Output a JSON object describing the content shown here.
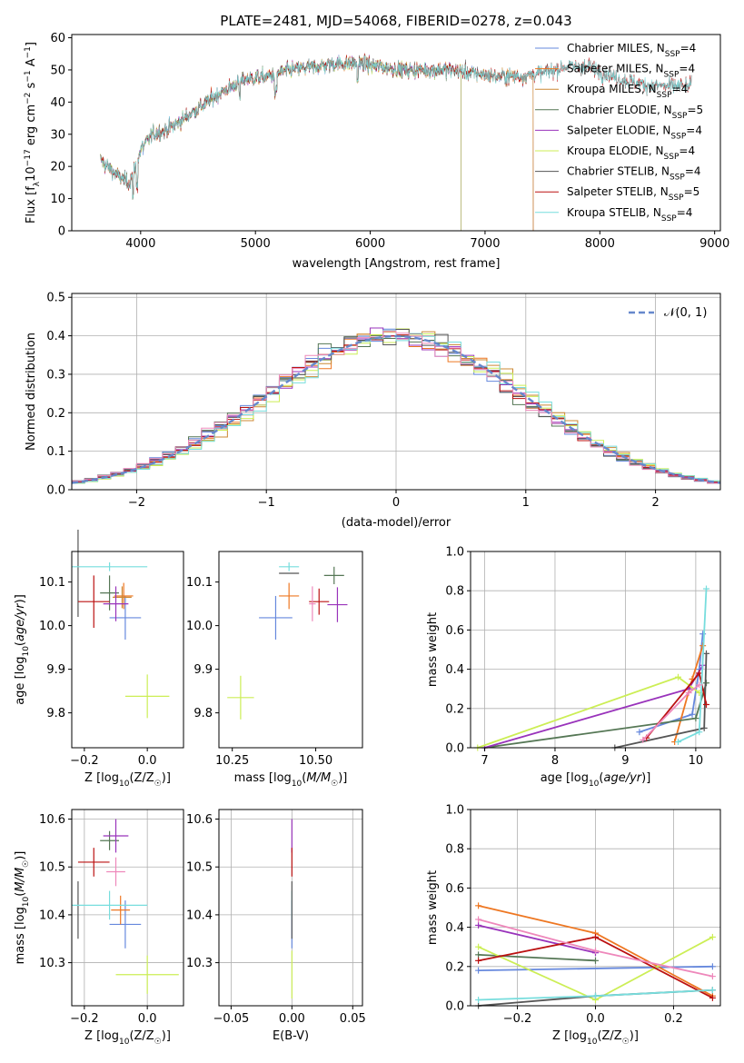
{
  "figure": {
    "title": "PLATE=2481, MJD=54068, FIBERID=0278, z=0.043"
  },
  "colors": {
    "Chabrier MILES": "#6688dd",
    "Salpeter MILES": "#ee7722",
    "Kroupa MILES": "#cc8833",
    "Chabrier ELODIE": "#557755",
    "Salpeter ELODIE": "#9933bb",
    "Kroupa ELODIE": "#ccee55",
    "Chabrier STELIB": "#555555",
    "Salpeter STELIB": "#bb1111",
    "Kroupa STELIB": "#77dddd",
    "extra": "#ee88bb"
  },
  "chart_data": [
    {
      "id": "spectrum",
      "type": "line",
      "xlabel": "wavelength [Angstrom, rest frame]",
      "ylabel": "Flux [f_λ10^-17 erg cm^-2 s^-1 A^-1]",
      "xlim": [
        3400,
        9050
      ],
      "ylim": [
        0,
        61
      ],
      "xticks": [
        4000,
        5000,
        6000,
        7000,
        8000,
        9000
      ],
      "yticks": [
        0,
        10,
        20,
        30,
        40,
        50,
        60
      ],
      "legend_position": "upper right",
      "legend": [
        {
          "imf": "Chabrier MILES",
          "n": "4"
        },
        {
          "imf": "Salpeter MILES",
          "n": "4"
        },
        {
          "imf": "Kroupa MILES",
          "n": "4"
        },
        {
          "imf": "Chabrier ELODIE",
          "n": "5"
        },
        {
          "imf": "Salpeter ELODIE",
          "n": "4"
        },
        {
          "imf": "Kroupa ELODIE",
          "n": "4"
        },
        {
          "imf": "Chabrier STELIB",
          "n": "4"
        },
        {
          "imf": "Salpeter STELIB",
          "n": "5"
        },
        {
          "imf": "Kroupa STELIB",
          "n": "4"
        }
      ],
      "continuum": {
        "x": [
          3650,
          3800,
          3900,
          4000,
          4100,
          4200,
          4300,
          4500,
          4700,
          4900,
          5100,
          5300,
          5500,
          5700,
          5900,
          6100,
          6300,
          6500,
          6700,
          6900,
          7100,
          7300,
          7500,
          7700,
          7900,
          8100,
          8300,
          8500,
          8800
        ],
        "y": [
          22,
          17,
          15,
          25,
          30,
          31,
          33,
          38,
          43,
          47,
          48,
          50,
          51,
          52,
          52,
          51,
          50,
          50,
          50,
          49,
          48,
          48,
          49,
          51,
          51,
          48,
          46,
          45,
          45
        ]
      },
      "spectrum_ranges": {
        "MILES": [
          3650,
          7420
        ],
        "ELODIE": [
          3650,
          6790
        ],
        "STELIB": [
          3650,
          8800
        ]
      },
      "grid": false
    },
    {
      "id": "residuals",
      "type": "line",
      "xlabel": "(data-model)/error",
      "ylabel": "Normed distribution",
      "xlim": [
        -2.5,
        2.5
      ],
      "ylim": [
        0,
        0.51
      ],
      "xticks": [
        -2,
        -1,
        0,
        1,
        2
      ],
      "yticks": [
        0.0,
        0.1,
        0.2,
        0.3,
        0.4,
        0.5
      ],
      "grid": true,
      "reference": {
        "name": "𝒩(0, 1)",
        "mean": 0,
        "sigma": 1
      },
      "legend_position": "upper right",
      "histogram": {
        "bin_start": -2.6,
        "bin_width": 0.1,
        "bins": 52
      }
    },
    {
      "id": "age_vs_Z",
      "type": "scatter",
      "xlabel": "Z [log10(Z/Z☉)]",
      "ylabel": "age  [log10(age/yr)]",
      "xlim": [
        -0.24,
        0.115
      ],
      "ylim": [
        9.72,
        10.17
      ],
      "xticks": [
        -0.2,
        0.0
      ],
      "yticks": [
        9.8,
        9.9,
        10.0,
        10.1
      ],
      "grid": false,
      "points": [
        {
          "model": "Chabrier MILES",
          "x": -0.07,
          "y": 10.018,
          "xerr": 0.05,
          "yerr": 0.05
        },
        {
          "model": "Salpeter MILES",
          "x": -0.075,
          "y": 10.068,
          "xerr": 0.03,
          "yerr": 0.03
        },
        {
          "model": "Kroupa MILES",
          "x": -0.08,
          "y": 10.065,
          "xerr": 0.03,
          "yerr": 0.025
        },
        {
          "model": "Chabrier ELODIE",
          "x": -0.12,
          "y": 10.075,
          "xerr": 0.03,
          "yerr": 0.04
        },
        {
          "model": "Salpeter ELODIE",
          "x": -0.1,
          "y": 10.05,
          "xerr": 0.04,
          "yerr": 0.04
        },
        {
          "model": "Kroupa ELODIE",
          "x": 0.0,
          "y": 9.838,
          "xerr": 0.07,
          "yerr": 0.05
        },
        {
          "model": "Chabrier STELIB",
          "x": -0.22,
          "y": 10.12,
          "xerr": 0.0,
          "yerr": 0.1
        },
        {
          "model": "Salpeter STELIB",
          "x": -0.17,
          "y": 10.055,
          "xerr": 0.05,
          "yerr": 0.06
        },
        {
          "model": "Kroupa STELIB",
          "x": -0.12,
          "y": 10.135,
          "xerr": 0.12,
          "yerr": 0.01
        }
      ]
    },
    {
      "id": "age_vs_mass",
      "type": "scatter",
      "xlabel": "mass [log10(M/M☉)]",
      "ylabel": "",
      "xlim": [
        10.21,
        10.64
      ],
      "ylim": [
        9.72,
        10.17
      ],
      "xticks": [
        10.25,
        10.5
      ],
      "yticks": [
        9.8,
        9.9,
        10.0,
        10.1
      ],
      "xtick_labels": [
        "10.25",
        "10.50"
      ],
      "grid": false,
      "points": [
        {
          "model": "Chabrier MILES",
          "x": 10.38,
          "y": 10.018,
          "xerr": 0.05,
          "yerr": 0.05
        },
        {
          "model": "Salpeter MILES",
          "x": 10.42,
          "y": 10.068,
          "xerr": 0.03,
          "yerr": 0.03
        },
        {
          "model": "Chabrier ELODIE",
          "x": 10.555,
          "y": 10.115,
          "xerr": 0.03,
          "yerr": 0.02
        },
        {
          "model": "Salpeter ELODIE",
          "x": 10.565,
          "y": 10.048,
          "xerr": 0.03,
          "yerr": 0.04
        },
        {
          "model": "Kroupa ELODIE",
          "x": 10.275,
          "y": 9.835,
          "xerr": 0.04,
          "yerr": 0.05
        },
        {
          "model": "Chabrier STELIB",
          "x": 10.42,
          "y": 10.12,
          "xerr": 0.03,
          "yerr": 0.0
        },
        {
          "model": "Salpeter STELIB",
          "x": 10.51,
          "y": 10.055,
          "xerr": 0.03,
          "yerr": 0.03
        },
        {
          "model": "Kroupa STELIB",
          "x": 10.42,
          "y": 10.135,
          "xerr": 0.03,
          "yerr": 0.01
        },
        {
          "model": "extra",
          "x": 10.49,
          "y": 10.05,
          "xerr": 0.01,
          "yerr": 0.04
        }
      ]
    },
    {
      "id": "massweight_vs_age",
      "type": "line",
      "xlabel": "age  [log10(age/yr)]",
      "ylabel": "mass weight",
      "xlim": [
        6.8,
        10.35
      ],
      "ylim": [
        0,
        1.0
      ],
      "xticks": [
        7,
        8,
        9,
        10
      ],
      "yticks": [
        0.0,
        0.2,
        0.4,
        0.6,
        0.8,
        1.0
      ],
      "grid": true,
      "series": [
        {
          "model": "Chabrier MILES",
          "x": [
            9.2,
            9.95,
            10.05,
            10.1
          ],
          "y": [
            0.08,
            0.17,
            0.4,
            0.58
          ]
        },
        {
          "model": "Salpeter MILES",
          "x": [
            9.7,
            9.95,
            10.1
          ],
          "y": [
            0.03,
            0.35,
            0.52
          ]
        },
        {
          "model": "Chabrier ELODIE",
          "x": [
            7.0,
            10.0,
            10.15
          ],
          "y": [
            0.0,
            0.15,
            0.33
          ]
        },
        {
          "model": "Salpeter ELODIE",
          "x": [
            7.0,
            9.9,
            10.1
          ],
          "y": [
            0.0,
            0.3,
            0.42
          ]
        },
        {
          "model": "Kroupa ELODIE",
          "x": [
            6.9,
            9.75,
            10.05
          ],
          "y": [
            0.0,
            0.36,
            0.28
          ]
        },
        {
          "model": "Chabrier STELIB",
          "x": [
            8.85,
            10.12,
            10.15
          ],
          "y": [
            0.0,
            0.1,
            0.48
          ]
        },
        {
          "model": "Salpeter STELIB",
          "x": [
            9.3,
            10.05,
            10.15
          ],
          "y": [
            0.05,
            0.38,
            0.22
          ]
        },
        {
          "model": "Kroupa STELIB",
          "x": [
            9.75,
            10.05,
            10.15
          ],
          "y": [
            0.03,
            0.08,
            0.81
          ]
        },
        {
          "model": "extra",
          "x": [
            9.25,
            9.9,
            10.05
          ],
          "y": [
            0.04,
            0.28,
            0.32
          ]
        }
      ]
    },
    {
      "id": "mass_vs_Z",
      "type": "scatter",
      "xlabel": "Z [log10(Z/Z☉)]",
      "ylabel": "mass [log10(M/M☉)]",
      "xlim": [
        -0.24,
        0.115
      ],
      "ylim": [
        10.21,
        10.62
      ],
      "xticks": [
        -0.2,
        0.0
      ],
      "yticks": [
        10.3,
        10.4,
        10.5,
        10.6
      ],
      "grid": true,
      "points": [
        {
          "model": "Chabrier MILES",
          "x": -0.07,
          "y": 10.38,
          "xerr": 0.05,
          "yerr": 0.05
        },
        {
          "model": "Salpeter MILES",
          "x": -0.085,
          "y": 10.41,
          "xerr": 0.03,
          "yerr": 0.03
        },
        {
          "model": "Chabrier ELODIE",
          "x": -0.12,
          "y": 10.555,
          "xerr": 0.03,
          "yerr": 0.02
        },
        {
          "model": "Salpeter ELODIE",
          "x": -0.1,
          "y": 10.565,
          "xerr": 0.04,
          "yerr": 0.035
        },
        {
          "model": "Kroupa ELODIE",
          "x": 0.0,
          "y": 10.275,
          "xerr": 0.1,
          "yerr": 0.04
        },
        {
          "model": "Chabrier STELIB",
          "x": -0.22,
          "y": 10.41,
          "xerr": 0.0,
          "yerr": 0.06
        },
        {
          "model": "Salpeter STELIB",
          "x": -0.17,
          "y": 10.51,
          "xerr": 0.05,
          "yerr": 0.03
        },
        {
          "model": "Kroupa STELIB",
          "x": -0.12,
          "y": 10.42,
          "xerr": 0.12,
          "yerr": 0.03
        },
        {
          "model": "extra",
          "x": -0.1,
          "y": 10.49,
          "xerr": 0.03,
          "yerr": 0.03
        }
      ]
    },
    {
      "id": "mass_vs_EBV",
      "type": "scatter",
      "xlabel": "E(B-V)",
      "ylabel": "",
      "xlim": [
        -0.06,
        0.058
      ],
      "ylim": [
        10.21,
        10.62
      ],
      "xticks": [
        -0.05,
        0.0,
        0.05
      ],
      "xtick_labels": [
        "−0.05",
        "0.00",
        "0.05"
      ],
      "yticks": [
        10.3,
        10.4,
        10.5,
        10.6
      ],
      "grid": true,
      "points": [
        {
          "model": "Salpeter ELODIE",
          "x": 0.0,
          "y": 10.565,
          "xerr": 0,
          "yerr": 0.035
        },
        {
          "model": "Salpeter STELIB",
          "x": 0.0,
          "y": 10.51,
          "xerr": 0,
          "yerr": 0.03
        },
        {
          "model": "Chabrier MILES",
          "x": 0.0,
          "y": 10.38,
          "xerr": 0,
          "yerr": 0.05
        },
        {
          "model": "Kroupa STELIB",
          "x": 0.0,
          "y": 10.42,
          "xerr": 0,
          "yerr": 0.03
        },
        {
          "model": "Kroupa ELODIE",
          "x": 0.0,
          "y": 10.275,
          "xerr": 0,
          "yerr": 0.05
        },
        {
          "model": "Chabrier STELIB",
          "x": 0.0,
          "y": 10.41,
          "xerr": 0,
          "yerr": 0.06
        }
      ]
    },
    {
      "id": "massweight_vs_Z",
      "type": "line",
      "xlabel": "Z [log10(Z/Z☉)]",
      "ylabel": "mass weight",
      "xlim": [
        -0.32,
        0.32
      ],
      "ylim": [
        0,
        1.0
      ],
      "xticks": [
        -0.2,
        0.0,
        0.2
      ],
      "yticks": [
        0.0,
        0.2,
        0.4,
        0.6,
        0.8,
        1.0
      ],
      "grid": true,
      "series": [
        {
          "model": "Chabrier MILES",
          "x": [
            -0.3,
            0.3
          ],
          "y": [
            0.18,
            0.2
          ]
        },
        {
          "model": "Salpeter MILES",
          "x": [
            -0.3,
            0.0,
            0.3
          ],
          "y": [
            0.51,
            0.37,
            0.05
          ]
        },
        {
          "model": "Chabrier ELODIE",
          "x": [
            -0.3,
            0.0
          ],
          "y": [
            0.26,
            0.23
          ]
        },
        {
          "model": "Salpeter ELODIE",
          "x": [
            -0.3,
            0.0
          ],
          "y": [
            0.41,
            0.27
          ]
        },
        {
          "model": "Kroupa ELODIE",
          "x": [
            -0.3,
            0.0,
            0.3
          ],
          "y": [
            0.3,
            0.03,
            0.35
          ]
        },
        {
          "model": "Chabrier STELIB",
          "x": [
            -0.3,
            0.0,
            0.3
          ],
          "y": [
            0.0,
            0.05,
            0.08
          ]
        },
        {
          "model": "Salpeter STELIB",
          "x": [
            -0.3,
            0.0,
            0.3
          ],
          "y": [
            0.23,
            0.35,
            0.04
          ]
        },
        {
          "model": "Kroupa STELIB",
          "x": [
            -0.3,
            0.0,
            0.3
          ],
          "y": [
            0.03,
            0.05,
            0.08
          ]
        },
        {
          "model": "extra",
          "x": [
            -0.3,
            0.0,
            0.3
          ],
          "y": [
            0.44,
            0.28,
            0.15
          ]
        }
      ]
    }
  ]
}
